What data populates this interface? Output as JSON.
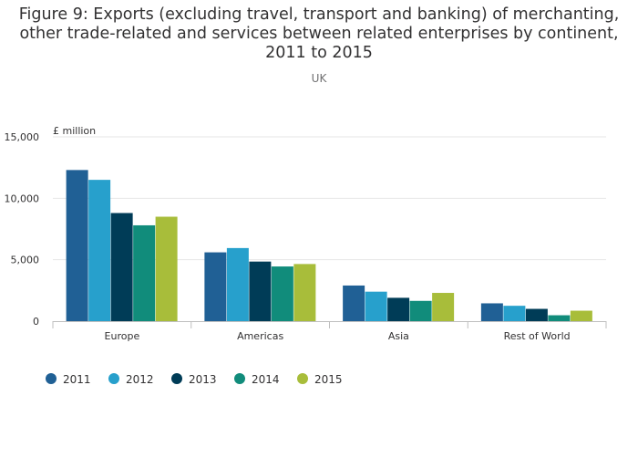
{
  "chart_data": {
    "type": "bar",
    "title_lines": [
      "Figure 9: Exports (excluding travel, transport and banking) of merchanting,",
      "other trade-related and services between related enterprises by continent,",
      "2011 to 2015"
    ],
    "subtitle": "UK",
    "ylabel": "£ million",
    "xlabel": "",
    "categories": [
      "Europe",
      "Americas",
      "Asia",
      "Rest of World"
    ],
    "ylim": [
      0,
      15000
    ],
    "yticks": [
      0,
      5000,
      10000,
      15000
    ],
    "ytick_labels": [
      "0",
      "5,000",
      "10,000",
      "15,000"
    ],
    "grid": true,
    "legend_position": "bottom-left",
    "series": [
      {
        "name": "2011",
        "color": "#206095",
        "values": [
          12300,
          5600,
          2900,
          1450
        ]
      },
      {
        "name": "2012",
        "color": "#27a0cc",
        "values": [
          11500,
          5950,
          2400,
          1250
        ]
      },
      {
        "name": "2013",
        "color": "#003c57",
        "values": [
          8800,
          4850,
          1900,
          1000
        ]
      },
      {
        "name": "2014",
        "color": "#118c7b",
        "values": [
          7800,
          4450,
          1650,
          480
        ]
      },
      {
        "name": "2015",
        "color": "#a8bd3a",
        "values": [
          8500,
          4650,
          2300,
          850
        ]
      }
    ]
  }
}
